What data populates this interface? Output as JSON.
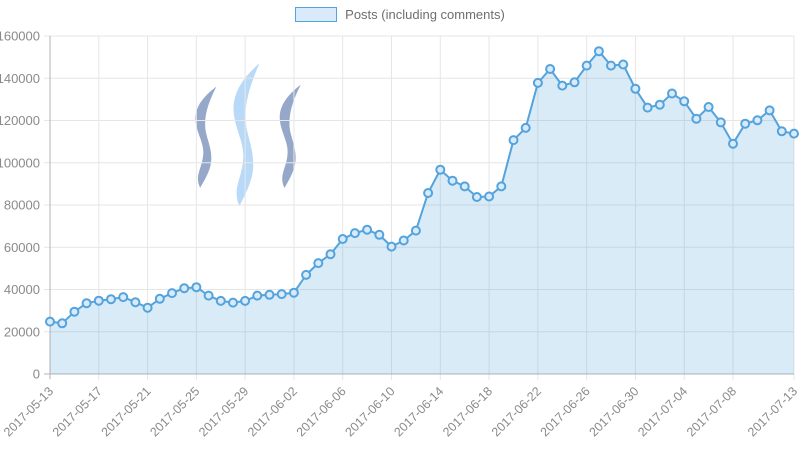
{
  "legend": {
    "label": "Posts (including comments)"
  },
  "chart_data": {
    "type": "area",
    "title": "",
    "xlabel": "",
    "ylabel": "",
    "ylim": [
      0,
      160000
    ],
    "grid": true,
    "legend_position": "top",
    "x": [
      "2017-05-13",
      "2017-05-14",
      "2017-05-15",
      "2017-05-16",
      "2017-05-17",
      "2017-05-18",
      "2017-05-19",
      "2017-05-20",
      "2017-05-21",
      "2017-05-22",
      "2017-05-23",
      "2017-05-24",
      "2017-05-25",
      "2017-05-26",
      "2017-05-27",
      "2017-05-28",
      "2017-05-29",
      "2017-05-30",
      "2017-05-31",
      "2017-06-01",
      "2017-06-02",
      "2017-06-03",
      "2017-06-04",
      "2017-06-05",
      "2017-06-06",
      "2017-06-07",
      "2017-06-08",
      "2017-06-09",
      "2017-06-10",
      "2017-06-11",
      "2017-06-12",
      "2017-06-13",
      "2017-06-14",
      "2017-06-15",
      "2017-06-16",
      "2017-06-17",
      "2017-06-18",
      "2017-06-19",
      "2017-06-20",
      "2017-06-21",
      "2017-06-22",
      "2017-06-23",
      "2017-06-24",
      "2017-06-25",
      "2017-06-26",
      "2017-06-27",
      "2017-06-28",
      "2017-06-29",
      "2017-06-30",
      "2017-07-01",
      "2017-07-02",
      "2017-07-03",
      "2017-07-04",
      "2017-07-05",
      "2017-07-06",
      "2017-07-07",
      "2017-07-08",
      "2017-07-09",
      "2017-07-10",
      "2017-07-11",
      "2017-07-12",
      "2017-07-13"
    ],
    "series": [
      {
        "name": "Posts (including comments)",
        "values": [
          24800,
          24000,
          29500,
          33500,
          34700,
          35400,
          36400,
          34000,
          31400,
          35600,
          38300,
          40600,
          41100,
          37100,
          34600,
          33800,
          34600,
          37100,
          37500,
          37800,
          38500,
          46900,
          52500,
          56700,
          63900,
          66700,
          68300,
          65900,
          60300,
          63200,
          67900,
          85700,
          96700,
          91500,
          88800,
          83800,
          84000,
          88800,
          110700,
          116500,
          137800,
          144400,
          136500,
          138100,
          146000,
          152800,
          146000,
          146500,
          135000,
          126100,
          127500,
          132800,
          129100,
          120800,
          126400,
          119100,
          109000,
          118500,
          120100,
          124800,
          114900,
          113800
        ]
      }
    ],
    "y_ticks": [
      0,
      20000,
      40000,
      60000,
      80000,
      100000,
      120000,
      140000,
      160000
    ],
    "x_tick_indices": [
      0,
      4,
      8,
      12,
      16,
      20,
      24,
      28,
      32,
      36,
      40,
      44,
      48,
      52,
      56,
      61
    ],
    "x_tick_labels": [
      "2017-05-13",
      "2017-05-17",
      "2017-05-21",
      "2017-05-25",
      "2017-05-29",
      "2017-06-02",
      "2017-06-06",
      "2017-06-10",
      "2017-06-14",
      "2017-06-18",
      "2017-06-22",
      "2017-06-26",
      "2017-06-30",
      "2017-07-04",
      "2017-07-08",
      "2017-07-13"
    ],
    "colors": {
      "line": "#54a3dc",
      "area": "rgba(84,163,220,0.22)",
      "marker_fill": "#d9ebfa",
      "grid": "#e6e6e6",
      "axis": "#b3b3b3",
      "tick_text": "#8a8a8a",
      "legend_text": "#6e6e6e",
      "watermark_side": "#95a8ca",
      "watermark_middle": "#b9d9f8"
    }
  }
}
